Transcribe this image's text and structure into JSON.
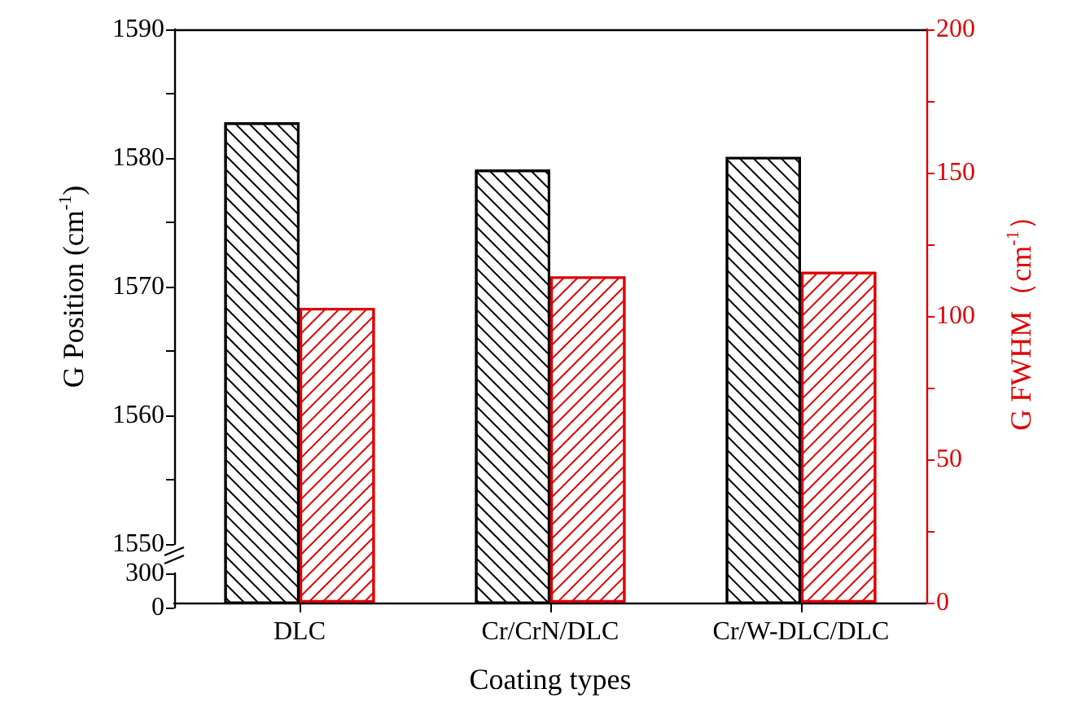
{
  "chart_data": {
    "type": "bar",
    "xlabel": "Coating types",
    "ylabel": "G Position (cm$^{-1}$)",
    "y2label": "G FWHM（cm$^{-1}$）",
    "categories": [
      "DLC",
      "Cr/CrN/DLC",
      "Cr/W-DLC/DLC"
    ],
    "series": [
      {
        "color": "#000000",
        "values": [
          1582.7,
          1579.0,
          1580.0
        ]
      },
      {
        "color": "#e00000",
        "axis": "y2",
        "values": [
          102.8,
          113.8,
          115.4
        ]
      }
    ],
    "ylim": [
      1550,
      1590
    ],
    "yticks": [
      1550,
      {
        "value": 1555,
        "label": null
      },
      1560,
      {
        "value": 1565,
        "label": null
      },
      1570,
      {
        "value": 1575,
        "label": null
      },
      1580,
      {
        "value": 1585,
        "label": null
      },
      1590
    ],
    "y3lim": [
      0,
      300
    ],
    "y3ticks": [
      0,
      300
    ],
    "y2lim": [
      0,
      200
    ],
    "y2ticks": [
      0,
      {
        "value": 25,
        "label": null
      },
      50,
      {
        "value": 75,
        "label": null
      },
      100,
      {
        "value": 125,
        "label": null
      },
      150,
      {
        "value": 175,
        "label": null
      },
      200
    ]
  }
}
